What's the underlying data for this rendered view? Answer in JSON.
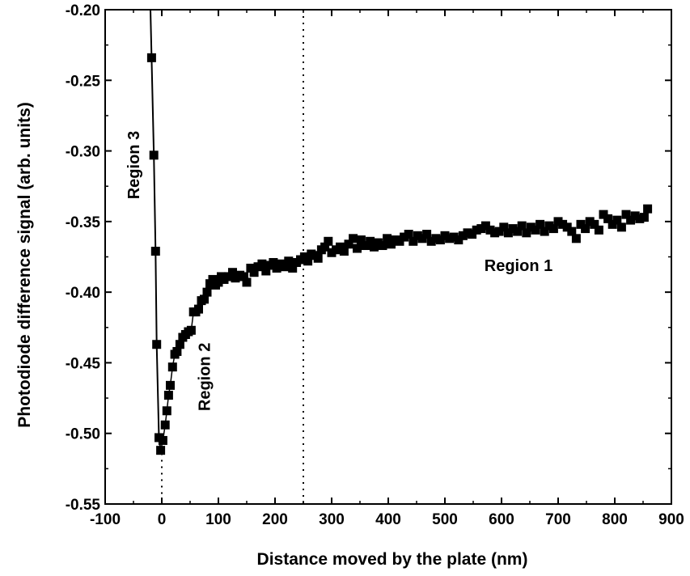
{
  "chart_data": {
    "type": "scatter",
    "title": "",
    "xlabel": "Distance moved by the plate (nm)",
    "ylabel": "Photodiode difference signal (arb. units)",
    "xlim": [
      -100,
      900
    ],
    "ylim": [
      -0.55,
      -0.2
    ],
    "xticks": [
      -100,
      0,
      100,
      200,
      300,
      400,
      500,
      600,
      700,
      800,
      900
    ],
    "yticks": [
      -0.55,
      -0.5,
      -0.45,
      -0.4,
      -0.35,
      -0.3,
      -0.25,
      -0.2
    ],
    "xtick_labels": [
      "-100",
      "0",
      "100",
      "200",
      "300",
      "400",
      "500",
      "600",
      "700",
      "800",
      "900"
    ],
    "ytick_labels": [
      "-0.55",
      "-0.50",
      "-0.45",
      "-0.40",
      "-0.35",
      "-0.30",
      "-0.25",
      "-0.20"
    ],
    "grid": false,
    "marker": "square",
    "marker_color": "#000000",
    "line_color": "#000000",
    "vertical_reference_lines": [
      0,
      250
    ],
    "series": [
      {
        "points": [
          [
            -18,
            -0.234
          ],
          [
            -14,
            -0.303
          ],
          [
            -11,
            -0.371
          ],
          [
            -9,
            -0.437
          ],
          [
            -5,
            -0.503
          ],
          [
            -2,
            -0.512
          ],
          [
            2,
            -0.505
          ],
          [
            6,
            -0.494
          ],
          [
            9,
            -0.484
          ],
          [
            12,
            -0.473
          ],
          [
            15,
            -0.466
          ],
          [
            19,
            -0.453
          ],
          [
            23,
            -0.444
          ],
          [
            27,
            -0.442
          ],
          [
            32,
            -0.437
          ],
          [
            37,
            -0.432
          ],
          [
            42,
            -0.43
          ],
          [
            47,
            -0.428
          ],
          [
            52,
            -0.427
          ],
          [
            56,
            -0.414
          ],
          [
            60,
            -0.414
          ],
          [
            65,
            -0.412
          ],
          [
            70,
            -0.406
          ],
          [
            75,
            -0.405
          ],
          [
            80,
            -0.4
          ],
          [
            85,
            -0.394
          ],
          [
            90,
            -0.391
          ],
          [
            95,
            -0.395
          ],
          [
            100,
            -0.393
          ],
          [
            105,
            -0.389
          ],
          [
            110,
            -0.391
          ],
          [
            118,
            -0.389
          ],
          [
            125,
            -0.386
          ],
          [
            130,
            -0.39
          ],
          [
            138,
            -0.388
          ],
          [
            145,
            -0.389
          ],
          [
            150,
            -0.393
          ],
          [
            157,
            -0.383
          ],
          [
            163,
            -0.386
          ],
          [
            170,
            -0.382
          ],
          [
            177,
            -0.38
          ],
          [
            184,
            -0.385
          ],
          [
            190,
            -0.381
          ],
          [
            197,
            -0.379
          ],
          [
            203,
            -0.383
          ],
          [
            210,
            -0.38
          ],
          [
            217,
            -0.382
          ],
          [
            224,
            -0.378
          ],
          [
            231,
            -0.383
          ],
          [
            238,
            -0.379
          ],
          [
            245,
            -0.377
          ],
          [
            252,
            -0.375
          ],
          [
            258,
            -0.378
          ],
          [
            264,
            -0.373
          ],
          [
            270,
            -0.374
          ],
          [
            276,
            -0.376
          ],
          [
            282,
            -0.37
          ],
          [
            288,
            -0.368
          ],
          [
            294,
            -0.364
          ],
          [
            300,
            -0.372
          ],
          [
            308,
            -0.37
          ],
          [
            315,
            -0.368
          ],
          [
            322,
            -0.371
          ],
          [
            330,
            -0.366
          ],
          [
            338,
            -0.362
          ],
          [
            345,
            -0.369
          ],
          [
            352,
            -0.363
          ],
          [
            360,
            -0.367
          ],
          [
            368,
            -0.364
          ],
          [
            375,
            -0.368
          ],
          [
            382,
            -0.365
          ],
          [
            390,
            -0.367
          ],
          [
            398,
            -0.362
          ],
          [
            405,
            -0.366
          ],
          [
            413,
            -0.363
          ],
          [
            420,
            -0.364
          ],
          [
            428,
            -0.361
          ],
          [
            436,
            -0.359
          ],
          [
            444,
            -0.364
          ],
          [
            452,
            -0.36
          ],
          [
            460,
            -0.362
          ],
          [
            468,
            -0.359
          ],
          [
            476,
            -0.364
          ],
          [
            484,
            -0.362
          ],
          [
            492,
            -0.363
          ],
          [
            500,
            -0.36
          ],
          [
            508,
            -0.362
          ],
          [
            516,
            -0.361
          ],
          [
            524,
            -0.363
          ],
          [
            532,
            -0.36
          ],
          [
            540,
            -0.358
          ],
          [
            548,
            -0.359
          ],
          [
            556,
            -0.356
          ],
          [
            564,
            -0.355
          ],
          [
            572,
            -0.353
          ],
          [
            580,
            -0.356
          ],
          [
            588,
            -0.358
          ],
          [
            596,
            -0.357
          ],
          [
            604,
            -0.354
          ],
          [
            612,
            -0.358
          ],
          [
            620,
            -0.355
          ],
          [
            628,
            -0.357
          ],
          [
            636,
            -0.353
          ],
          [
            644,
            -0.358
          ],
          [
            652,
            -0.354
          ],
          [
            660,
            -0.356
          ],
          [
            668,
            -0.352
          ],
          [
            676,
            -0.357
          ],
          [
            684,
            -0.353
          ],
          [
            692,
            -0.355
          ],
          [
            700,
            -0.35
          ],
          [
            708,
            -0.352
          ],
          [
            716,
            -0.354
          ],
          [
            724,
            -0.357
          ],
          [
            732,
            -0.362
          ],
          [
            740,
            -0.352
          ],
          [
            748,
            -0.355
          ],
          [
            756,
            -0.35
          ],
          [
            764,
            -0.352
          ],
          [
            772,
            -0.356
          ],
          [
            780,
            -0.345
          ],
          [
            788,
            -0.348
          ],
          [
            796,
            -0.352
          ],
          [
            804,
            -0.349
          ],
          [
            812,
            -0.354
          ],
          [
            820,
            -0.345
          ],
          [
            828,
            -0.349
          ],
          [
            836,
            -0.346
          ],
          [
            844,
            -0.348
          ],
          [
            852,
            -0.347
          ],
          [
            858,
            -0.341
          ]
        ]
      }
    ],
    "steep_line_segment": [
      [
        -20,
        -0.2
      ],
      [
        -18,
        -0.234
      ],
      [
        -14,
        -0.303
      ],
      [
        -11,
        -0.371
      ],
      [
        -9,
        -0.437
      ],
      [
        -5,
        -0.503
      ],
      [
        -2,
        -0.512
      ]
    ],
    "annotations": [
      {
        "text": "Region 3",
        "x": -40,
        "y": -0.31,
        "rotation": -90
      },
      {
        "text": "Region 2",
        "x": 85,
        "y": -0.46,
        "rotation": -90
      },
      {
        "text": "Region 1",
        "x": 630,
        "y": -0.385,
        "rotation": 0
      }
    ]
  }
}
